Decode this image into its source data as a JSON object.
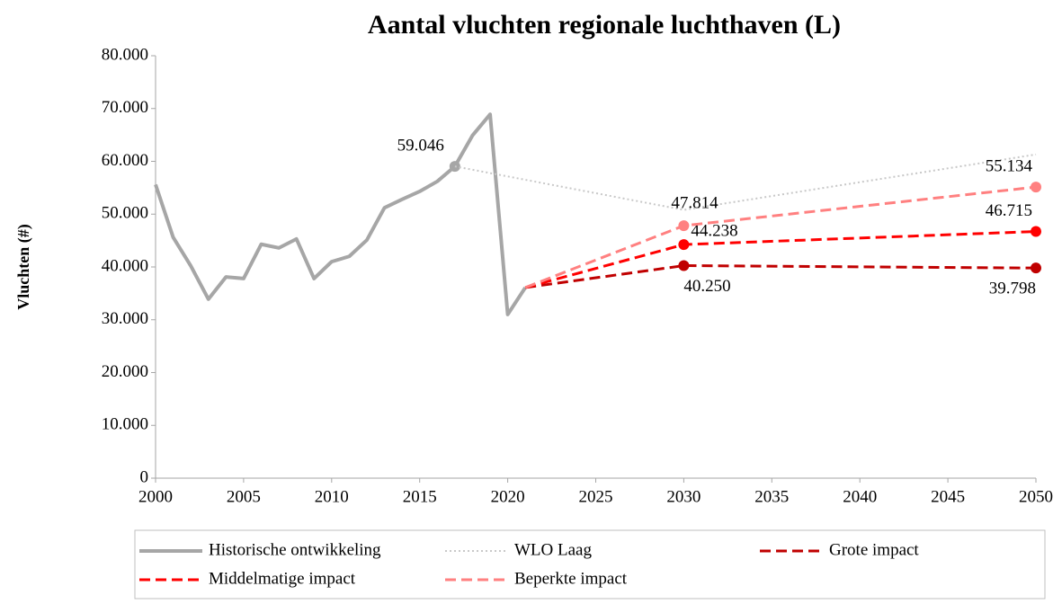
{
  "chart_data": {
    "type": "line",
    "title": "Aantal vluchten regionale luchthaven (L)",
    "y_label": "Vluchten (#)",
    "xlim": [
      2000,
      2050
    ],
    "xticks": [
      2000,
      2005,
      2010,
      2015,
      2020,
      2025,
      2030,
      2035,
      2040,
      2045,
      2050
    ],
    "ylim": [
      0,
      80000
    ],
    "yticks": [
      0,
      {
        "value": 10000,
        "label": "10.000"
      },
      {
        "value": 20000,
        "label": "20.000"
      },
      {
        "value": 30000,
        "label": "30.000"
      },
      {
        "value": 40000,
        "label": "40.000"
      },
      {
        "value": 50000,
        "label": "50.000"
      },
      {
        "value": 60000,
        "label": "60.000"
      },
      {
        "value": 70000,
        "label": "70.000"
      },
      {
        "value": 80000,
        "label": "80.000"
      }
    ],
    "grid": false,
    "legend": "bottom",
    "series": [
      {
        "name": "Historische ontwikkeling",
        "color": "#a6a6a6",
        "style": "solid",
        "x": [
          2000,
          2001,
          2002,
          2003,
          2004,
          2005,
          2006,
          2007,
          2008,
          2009,
          2010,
          2011,
          2012,
          2013,
          2014,
          2015,
          2016,
          2017,
          2018,
          2019,
          2020,
          2021
        ],
        "values": [
          55600,
          45600,
          40200,
          33900,
          38100,
          37800,
          44300,
          43600,
          45300,
          37800,
          41000,
          42000,
          45100,
          51200,
          52800,
          54300,
          56200,
          59046,
          64900,
          68900,
          31000,
          36100
        ],
        "value_labels": [
          null,
          null,
          null,
          null,
          null,
          null,
          null,
          null,
          null,
          null,
          null,
          null,
          null,
          null,
          null,
          null,
          null,
          "59.046",
          null,
          null,
          null,
          null
        ]
      },
      {
        "name": "WLO Laag",
        "color": "#c8c8c8",
        "style": "dotted",
        "x": [
          2017,
          2030,
          2050
        ],
        "values": [
          59046,
          50800,
          61300
        ]
      },
      {
        "name": "Grote impact",
        "color": "#c00000",
        "style": "dashed",
        "x": [
          2021,
          2030,
          2050
        ],
        "values": [
          36100,
          40250,
          39798
        ],
        "value_labels": [
          null,
          "40.250",
          "39.798"
        ]
      },
      {
        "name": "Middelmatige impact",
        "color": "#ff0000",
        "style": "dashed",
        "x": [
          2021,
          2030,
          2050
        ],
        "values": [
          36100,
          44238,
          46715
        ],
        "value_labels": [
          null,
          "44.238",
          "46.715"
        ]
      },
      {
        "name": "Beperkte impact",
        "color": "#ff8080",
        "style": "dashed",
        "x": [
          2021,
          2030,
          2050
        ],
        "values": [
          36100,
          47814,
          55134
        ],
        "value_labels": [
          null,
          "47.814",
          "55.134"
        ]
      }
    ]
  }
}
